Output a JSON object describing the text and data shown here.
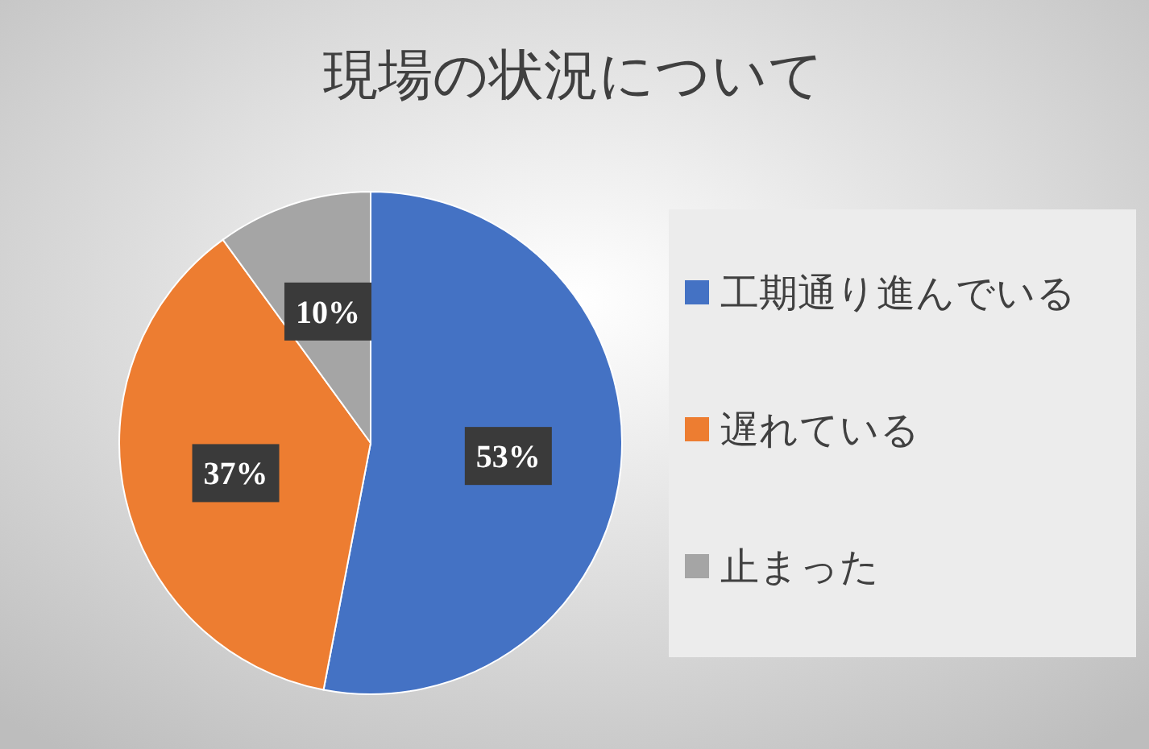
{
  "chart_data": {
    "type": "pie",
    "title": "現場の状況について",
    "categories": [
      "工期通り進んでいる",
      "遅れている",
      "止まった"
    ],
    "values": [
      53,
      37,
      10
    ],
    "colors": [
      "#4472c4",
      "#ed7d31",
      "#a5a5a5"
    ],
    "value_labels": [
      "53%",
      "37%",
      "10%"
    ],
    "legend": "right"
  }
}
